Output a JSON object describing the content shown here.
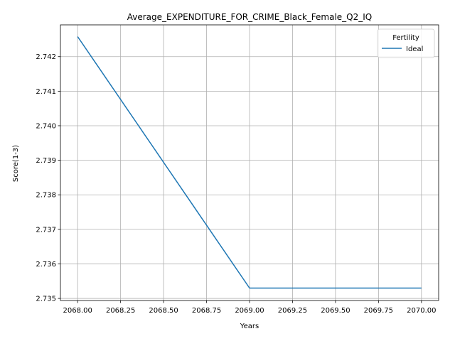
{
  "chart_data": {
    "type": "line",
    "title": "Average_EXPENDITURE_FOR_CRIME_Black_Female_Q2_IQ",
    "xlabel": "Years",
    "ylabel": "Score(1-3)",
    "xlim": [
      2067.9,
      2070.1
    ],
    "ylim": [
      2.73494,
      2.74292
    ],
    "xticks": [
      2068.0,
      2068.25,
      2068.5,
      2068.75,
      2069.0,
      2069.25,
      2069.5,
      2069.75,
      2070.0
    ],
    "xtick_labels": [
      "2068.00",
      "2068.25",
      "2068.50",
      "2068.75",
      "2069.00",
      "2069.25",
      "2069.50",
      "2069.75",
      "2070.00"
    ],
    "yticks": [
      2.735,
      2.736,
      2.737,
      2.738,
      2.739,
      2.74,
      2.741,
      2.742
    ],
    "ytick_labels": [
      "2.735",
      "2.736",
      "2.737",
      "2.738",
      "2.739",
      "2.740",
      "2.741",
      "2.742"
    ],
    "grid": true,
    "legend": {
      "title": "Fertility",
      "placement": "top-right"
    },
    "series": [
      {
        "name": "Ideal",
        "color": "#1f77b4",
        "x": [
          2068,
          2069,
          2070
        ],
        "y": [
          2.74258,
          2.7353,
          2.7353
        ]
      }
    ]
  }
}
